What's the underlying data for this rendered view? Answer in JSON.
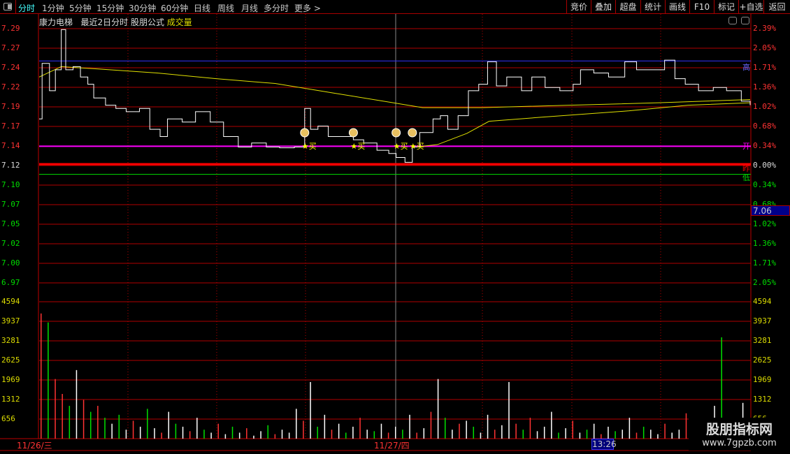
{
  "toolbar": {
    "periods": [
      "分时",
      "1分钟",
      "5分钟",
      "15分钟",
      "30分钟",
      "60分钟",
      "日线",
      "周线",
      "月线",
      "多分时",
      "更多 >"
    ],
    "active_period": "分时",
    "right_buttons": [
      "竞价",
      "叠加",
      "超盘",
      "统计",
      "画线",
      "F10",
      "标记",
      "+自选",
      "返回"
    ]
  },
  "title": {
    "stock": "康力电梯",
    "mode": "最近2日分时",
    "formula": "股朋公式",
    "indicator": "成交量"
  },
  "price_axis": {
    "left": [
      "7.29",
      "7.27",
      "7.24",
      "7.22",
      "7.19",
      "7.17",
      "7.14",
      "7.12",
      "7.10",
      "7.07",
      "7.05",
      "7.02",
      "7.00",
      "6.97"
    ],
    "right": [
      "2.39%",
      "2.05%",
      "1.71%",
      "1.36%",
      "1.02%",
      "0.68%",
      "0.34%",
      "0.00%",
      "0.34%",
      "0.68%",
      "1.02%",
      "1.36%",
      "1.71%",
      "2.05%"
    ]
  },
  "volume_axis": [
    "4594",
    "3937",
    "3281",
    "2625",
    "1969",
    "1312",
    "656"
  ],
  "markers": {
    "high": "高",
    "open": "开",
    "prev_close": "昨",
    "low": "低",
    "buy": "★买"
  },
  "current_price_badge": "7.06",
  "dates": [
    "11/26/三",
    "11/27/四"
  ],
  "cursor_time": "13:26",
  "watermark": {
    "name": "股朋指标网",
    "url": "www.7gpzb.com"
  },
  "colors": {
    "up": "#ff3333",
    "down": "#00e000",
    "grid": "#b00000",
    "price_line": "#ffffff",
    "avg_line": "#e0e000",
    "open_line": "#ff00ff",
    "high_line": "#3333ff",
    "low_line": "#00dd00",
    "prev_close_line": "#ff0000"
  },
  "chart_data": {
    "type": "line",
    "prev_close": 7.12,
    "high": 7.25,
    "open": 7.144,
    "low": 7.109,
    "minutes_total": 482,
    "price": [
      [
        0,
        7.178
      ],
      [
        2,
        7.247
      ],
      [
        7,
        7.213
      ],
      [
        11,
        7.239
      ],
      [
        15,
        7.289
      ],
      [
        18,
        7.239
      ],
      [
        23,
        7.243
      ],
      [
        28,
        7.23
      ],
      [
        33,
        7.221
      ],
      [
        37,
        7.204
      ],
      [
        45,
        7.195
      ],
      [
        52,
        7.191
      ],
      [
        59,
        7.187
      ],
      [
        68,
        7.191
      ],
      [
        75,
        7.165
      ],
      [
        82,
        7.156
      ],
      [
        87,
        7.178
      ],
      [
        97,
        7.174
      ],
      [
        106,
        7.187
      ],
      [
        116,
        7.174
      ],
      [
        125,
        7.156
      ],
      [
        135,
        7.143
      ],
      [
        144,
        7.148
      ],
      [
        154,
        7.143
      ],
      [
        163,
        7.142
      ],
      [
        173,
        7.143
      ],
      [
        180,
        7.191
      ],
      [
        184,
        7.165
      ],
      [
        189,
        7.169
      ],
      [
        196,
        7.156
      ],
      [
        206,
        7.156
      ],
      [
        213,
        7.152
      ],
      [
        220,
        7.148
      ],
      [
        229,
        7.139
      ],
      [
        237,
        7.135
      ],
      [
        242,
        7.13
      ],
      [
        248,
        7.124
      ],
      [
        253,
        7.143
      ],
      [
        258,
        7.161
      ],
      [
        267,
        7.178
      ],
      [
        272,
        7.182
      ],
      [
        277,
        7.165
      ],
      [
        284,
        7.182
      ],
      [
        291,
        7.213
      ],
      [
        298,
        7.221
      ],
      [
        304,
        7.249
      ],
      [
        310,
        7.219
      ],
      [
        317,
        7.23
      ],
      [
        327,
        7.213
      ],
      [
        334,
        7.23
      ],
      [
        343,
        7.217
      ],
      [
        353,
        7.213
      ],
      [
        362,
        7.221
      ],
      [
        367,
        7.239
      ],
      [
        376,
        7.235
      ],
      [
        386,
        7.23
      ],
      [
        397,
        7.249
      ],
      [
        405,
        7.239
      ],
      [
        414,
        7.239
      ],
      [
        424,
        7.251
      ],
      [
        431,
        7.228
      ],
      [
        438,
        7.221
      ],
      [
        447,
        7.213
      ],
      [
        457,
        7.217
      ],
      [
        466,
        7.213
      ],
      [
        476,
        7.2
      ],
      [
        482,
        7.195
      ]
    ],
    "avg_2day": [
      [
        0,
        7.23
      ],
      [
        15,
        7.243
      ],
      [
        40,
        7.24
      ],
      [
        80,
        7.235
      ],
      [
        120,
        7.228
      ],
      [
        160,
        7.222
      ],
      [
        200,
        7.21
      ],
      [
        240,
        7.198
      ],
      [
        260,
        7.192
      ],
      [
        300,
        7.192
      ],
      [
        360,
        7.195
      ],
      [
        420,
        7.198
      ],
      [
        482,
        7.202
      ]
    ],
    "avg_day2": [
      [
        255,
        7.143
      ],
      [
        270,
        7.146
      ],
      [
        290,
        7.16
      ],
      [
        305,
        7.175
      ],
      [
        340,
        7.18
      ],
      [
        400,
        7.188
      ],
      [
        440,
        7.195
      ],
      [
        482,
        7.198
      ]
    ],
    "volume": [
      [
        4200,
        "r"
      ],
      [
        3900,
        "g"
      ],
      [
        2000,
        "r"
      ],
      [
        1500,
        "r"
      ],
      [
        1100,
        "g"
      ],
      [
        2300,
        "w"
      ],
      [
        1300,
        "r"
      ],
      [
        900,
        "g"
      ],
      [
        1100,
        "r"
      ],
      [
        700,
        "g"
      ],
      [
        500,
        "w"
      ],
      [
        800,
        "g"
      ],
      [
        300,
        "w"
      ],
      [
        600,
        "r"
      ],
      [
        400,
        "w"
      ],
      [
        1000,
        "g"
      ],
      [
        350,
        "w"
      ],
      [
        200,
        "r"
      ],
      [
        900,
        "w"
      ],
      [
        500,
        "g"
      ],
      [
        400,
        "w"
      ],
      [
        250,
        "r"
      ],
      [
        700,
        "w"
      ],
      [
        300,
        "g"
      ],
      [
        200,
        "w"
      ],
      [
        500,
        "r"
      ],
      [
        150,
        "w"
      ],
      [
        400,
        "g"
      ],
      [
        200,
        "w"
      ],
      [
        350,
        "r"
      ],
      [
        100,
        "w"
      ],
      [
        250,
        "w"
      ],
      [
        450,
        "g"
      ],
      [
        150,
        "r"
      ],
      [
        300,
        "w"
      ],
      [
        200,
        "w"
      ],
      [
        1000,
        "w"
      ],
      [
        600,
        "r"
      ],
      [
        1900,
        "w"
      ],
      [
        400,
        "g"
      ],
      [
        800,
        "w"
      ],
      [
        300,
        "r"
      ],
      [
        500,
        "w"
      ],
      [
        200,
        "g"
      ],
      [
        400,
        "w"
      ],
      [
        700,
        "r"
      ],
      [
        300,
        "w"
      ],
      [
        250,
        "g"
      ],
      [
        500,
        "w"
      ],
      [
        200,
        "r"
      ],
      [
        400,
        "w"
      ],
      [
        300,
        "g"
      ],
      [
        800,
        "w"
      ],
      [
        200,
        "r"
      ],
      [
        350,
        "w"
      ],
      [
        900,
        "r"
      ],
      [
        2000,
        "w"
      ],
      [
        700,
        "g"
      ],
      [
        300,
        "w"
      ],
      [
        500,
        "r"
      ],
      [
        600,
        "w"
      ],
      [
        400,
        "g"
      ],
      [
        200,
        "w"
      ],
      [
        800,
        "w"
      ],
      [
        300,
        "r"
      ],
      [
        450,
        "w"
      ],
      [
        1900,
        "w"
      ],
      [
        500,
        "r"
      ],
      [
        300,
        "g"
      ],
      [
        700,
        "r"
      ],
      [
        250,
        "w"
      ],
      [
        400,
        "w"
      ],
      [
        900,
        "w"
      ],
      [
        200,
        "g"
      ],
      [
        350,
        "w"
      ],
      [
        600,
        "r"
      ],
      [
        200,
        "w"
      ],
      [
        300,
        "g"
      ],
      [
        500,
        "w"
      ],
      [
        150,
        "r"
      ],
      [
        400,
        "w"
      ],
      [
        250,
        "g"
      ],
      [
        300,
        "w"
      ],
      [
        700,
        "w"
      ],
      [
        200,
        "r"
      ],
      [
        400,
        "g"
      ],
      [
        300,
        "w"
      ],
      [
        150,
        "w"
      ],
      [
        500,
        "r"
      ],
      [
        200,
        "w"
      ],
      [
        300,
        "w"
      ],
      [
        850,
        "r"
      ],
      [
        700,
        "w"
      ],
      [
        300,
        "g"
      ],
      [
        200,
        "w"
      ],
      [
        1100,
        "w"
      ],
      [
        3400,
        "g"
      ],
      [
        400,
        "w"
      ],
      [
        250,
        "g"
      ],
      [
        1200,
        "w"
      ]
    ]
  }
}
